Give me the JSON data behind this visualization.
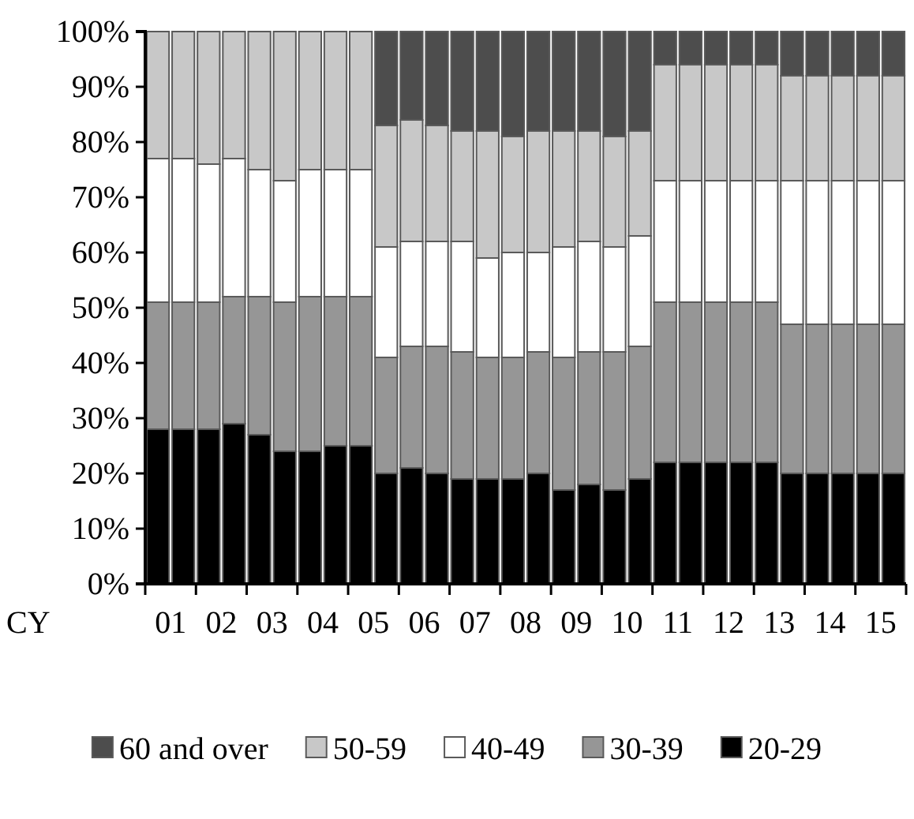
{
  "chart_data": {
    "type": "bar",
    "stacked": true,
    "xlabel": "CY",
    "categories": [
      "01",
      null,
      "02",
      null,
      "03",
      null,
      "04",
      null,
      "05",
      null,
      "06",
      null,
      "07",
      null,
      "08",
      null,
      "09",
      null,
      "10",
      null,
      "11",
      null,
      "12",
      null,
      "13",
      null,
      "14",
      null,
      "15",
      null
    ],
    "series": [
      {
        "name": "20-29",
        "color": "#000000",
        "values": [
          28,
          28,
          28,
          29,
          27,
          24,
          24,
          25,
          25,
          20,
          21,
          20,
          19,
          19,
          19,
          20,
          17,
          18,
          17,
          19,
          22,
          22,
          22,
          22,
          22,
          20,
          20,
          20,
          20,
          20
        ]
      },
      {
        "name": "30-39",
        "color": "#969696",
        "values": [
          23,
          23,
          23,
          23,
          25,
          27,
          28,
          27,
          27,
          21,
          22,
          23,
          23,
          22,
          22,
          22,
          24,
          24,
          25,
          24,
          29,
          29,
          29,
          29,
          29,
          27,
          27,
          27,
          27,
          27
        ]
      },
      {
        "name": "40-49",
        "color": "#ffffff",
        "values": [
          26,
          26,
          25,
          25,
          23,
          22,
          23,
          23,
          23,
          20,
          19,
          19,
          20,
          18,
          19,
          18,
          20,
          20,
          19,
          20,
          22,
          22,
          22,
          22,
          22,
          26,
          26,
          26,
          26,
          26
        ]
      },
      {
        "name": "50-59",
        "color": "#c8c8c8",
        "values": [
          23,
          23,
          24,
          23,
          25,
          27,
          25,
          25,
          25,
          22,
          22,
          21,
          20,
          23,
          21,
          22,
          21,
          20,
          20,
          19,
          21,
          21,
          21,
          21,
          21,
          19,
          19,
          19,
          19,
          19
        ]
      },
      {
        "name": "60 and over",
        "color": "#4d4d4d",
        "values": [
          0,
          0,
          0,
          0,
          0,
          0,
          0,
          0,
          0,
          17,
          16,
          17,
          18,
          18,
          19,
          18,
          18,
          18,
          19,
          18,
          6,
          6,
          6,
          6,
          6,
          8,
          8,
          8,
          8,
          8
        ]
      }
    ],
    "ylim": [
      0,
      100
    ],
    "yticks": [
      {
        "value": 0,
        "label": "0%"
      },
      {
        "value": 10,
        "label": "10%"
      },
      {
        "value": 20,
        "label": "20%"
      },
      {
        "value": 30,
        "label": "30%"
      },
      {
        "value": 40,
        "label": "40%"
      },
      {
        "value": 50,
        "label": "50%"
      },
      {
        "value": 60,
        "label": "60%"
      },
      {
        "value": 70,
        "label": "70%"
      },
      {
        "value": 80,
        "label": "80%"
      },
      {
        "value": 90,
        "label": "90%"
      },
      {
        "value": 100,
        "label": "100%"
      }
    ],
    "legend": "bottom"
  }
}
